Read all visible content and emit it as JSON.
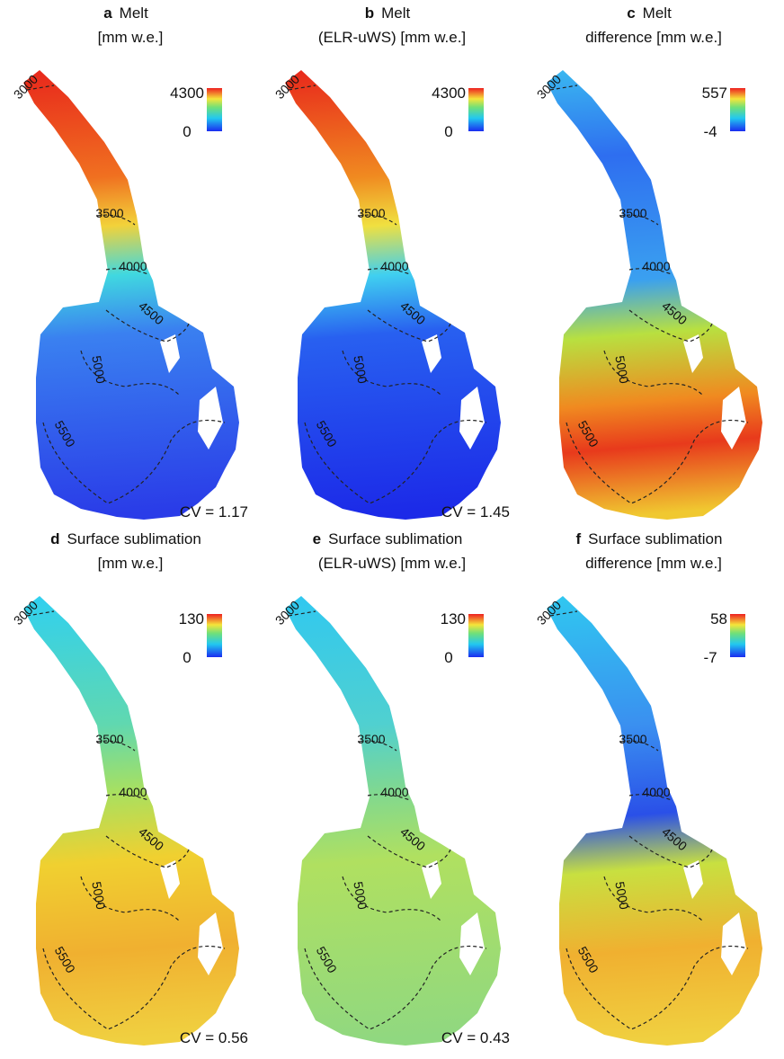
{
  "panels": [
    {
      "letter": "a",
      "title": [
        "Melt",
        "[mm w.e.]"
      ],
      "cbar_max": "4300",
      "cbar_min": "0",
      "contours": [
        "3000",
        "3500",
        "4000",
        "4500",
        "5000",
        "5500"
      ],
      "cv": "CV = 1.17"
    },
    {
      "letter": "b",
      "title": [
        "Melt",
        "(ELR-uWS) [mm w.e.]"
      ],
      "cbar_max": "4300",
      "cbar_min": "0",
      "contours": [
        "3000",
        "3500",
        "4000",
        "4500",
        "5000",
        "5500"
      ],
      "cv": "CV = 1.45"
    },
    {
      "letter": "c",
      "title": [
        "Melt",
        "difference [mm w.e.]"
      ],
      "cbar_max": "557",
      "cbar_min": "-4",
      "contours": [
        "3000",
        "3500",
        "4000",
        "4500",
        "5000",
        "5500"
      ]
    },
    {
      "letter": "d",
      "title": [
        "Surface sublimation",
        "[mm w.e.]"
      ],
      "cbar_max": "130",
      "cbar_min": "0",
      "contours": [
        "3000",
        "3500",
        "4000",
        "4500",
        "5000",
        "5500"
      ],
      "cv": "CV = 0.56"
    },
    {
      "letter": "e",
      "title": [
        "Surface sublimation",
        "(ELR-uWS) [mm w.e.]"
      ],
      "cbar_max": "130",
      "cbar_min": "0",
      "contours": [
        "3000",
        "3500",
        "4000",
        "4500",
        "5000",
        "5500"
      ],
      "cv": "CV = 0.43"
    },
    {
      "letter": "f",
      "title": [
        "Surface sublimation",
        "difference [mm w.e.]"
      ],
      "cbar_max": "58",
      "cbar_min": "-7",
      "contours": [
        "3000",
        "3500",
        "4000",
        "4500",
        "5000",
        "5500"
      ]
    }
  ]
}
